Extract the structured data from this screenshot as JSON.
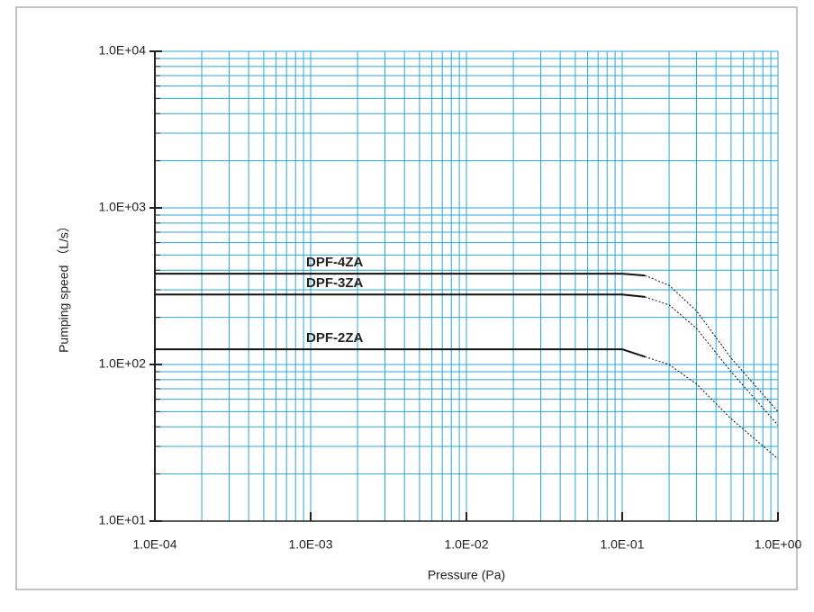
{
  "chart_data": {
    "type": "line",
    "xlabel": "Pressure (Pa)",
    "ylabel": "Pumping speed （L/s）",
    "xscale": "log",
    "yscale": "log",
    "xlim": [
      0.0001,
      1
    ],
    "ylim": [
      10,
      10000
    ],
    "xticks": [
      {
        "value": 0.0001,
        "label": "1.0E-04"
      },
      {
        "value": 0.001,
        "label": "1.0E-03"
      },
      {
        "value": 0.01,
        "label": "1.0E-02"
      },
      {
        "value": 0.1,
        "label": "1.0E-01"
      },
      {
        "value": 1,
        "label": "1.0E+00"
      }
    ],
    "yticks": [
      {
        "value": 10,
        "label": "1.0E+01"
      },
      {
        "value": 100,
        "label": "1.0E+02"
      },
      {
        "value": 1000,
        "label": "1.0E+03"
      },
      {
        "value": 10000,
        "label": "1.0E+04"
      }
    ],
    "grid": true,
    "minor_grid": true,
    "grid_color": "#2aa7d6",
    "series": [
      {
        "name": "DPF-4ZA",
        "color": "#111111",
        "linestyle": "solid",
        "x": [
          0.0001,
          0.1,
          0.14
        ],
        "values": [
          380,
          380,
          370
        ]
      },
      {
        "name": "DPF-3ZA",
        "color": "#111111",
        "linestyle": "solid",
        "x": [
          0.0001,
          0.1,
          0.14
        ],
        "values": [
          280,
          280,
          270
        ]
      },
      {
        "name": "DPF-2ZA",
        "color": "#111111",
        "linestyle": "solid",
        "x": [
          0.0001,
          0.1,
          0.14
        ],
        "values": [
          125,
          125,
          112
        ]
      },
      {
        "color": "#111111",
        "linestyle": "dotted",
        "x": [
          0.14,
          0.2,
          0.3,
          0.5,
          1
        ],
        "values": [
          370,
          320,
          220,
          110,
          50
        ]
      },
      {
        "color": "#111111",
        "linestyle": "dotted",
        "x": [
          0.14,
          0.2,
          0.3,
          0.5,
          1
        ],
        "values": [
          270,
          240,
          170,
          90,
          41
        ]
      },
      {
        "color": "#111111",
        "linestyle": "dotted",
        "x": [
          0.14,
          0.2,
          0.3,
          0.5,
          1
        ],
        "values": [
          112,
          100,
          75,
          45,
          25
        ]
      }
    ]
  }
}
